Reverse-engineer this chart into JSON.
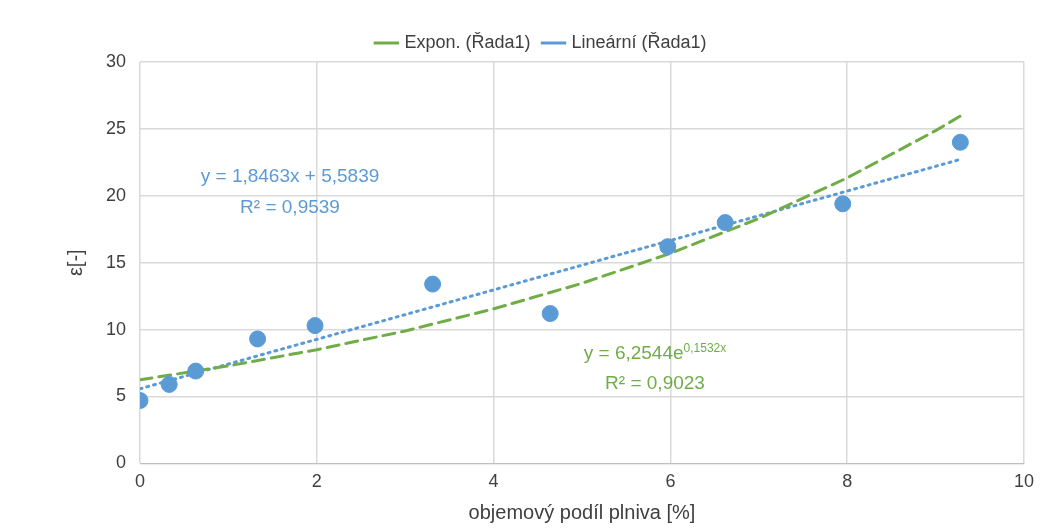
{
  "chart_data": {
    "type": "scatter",
    "xlabel": "objemový podíl plniva [%]",
    "ylabel": "ε[-]",
    "xlim": [
      0,
      10
    ],
    "xticks": [
      0,
      2,
      4,
      6,
      8,
      10
    ],
    "ylim": [
      0,
      30
    ],
    "yticks": [
      0,
      5,
      10,
      15,
      20,
      25,
      30
    ],
    "grid": true,
    "legend": "top",
    "marker": "circle",
    "series": [
      {
        "color": "#5b9bd5",
        "x": [
          0,
          0.33,
          0.63,
          1.33,
          1.98,
          3.31,
          4.64,
          5.97,
          6.62,
          7.95,
          9.28
        ],
        "values": [
          4.7,
          5.9,
          6.9,
          9.3,
          10.3,
          13.4,
          11.2,
          16.2,
          18.0,
          19.4,
          24.0
        ]
      },
      {
        "type": "line",
        "name": "Expon. (Řada1)",
        "color": "#70ad47",
        "line_style": "dashed",
        "marker": "none",
        "x": [
          0,
          1,
          2,
          3,
          4,
          5,
          6,
          7,
          8,
          9,
          9.28
        ],
        "values": [
          6.25,
          7.29,
          8.5,
          9.9,
          11.55,
          13.46,
          15.7,
          18.3,
          21.34,
          24.87,
          25.96
        ]
      },
      {
        "type": "line",
        "name": "Lineární (Řada1)",
        "color": "#5b9bd5",
        "line_style": "dotted",
        "marker": "none",
        "x": [
          0,
          9.28
        ],
        "values": [
          5.58,
          22.72
        ]
      }
    ],
    "annotations": [
      "y = 1,8463x + 5,5839",
      "R² = 0,9539",
      "y = 6,2544e$^{0,1532x}$",
      "R² = 0,9023"
    ]
  }
}
